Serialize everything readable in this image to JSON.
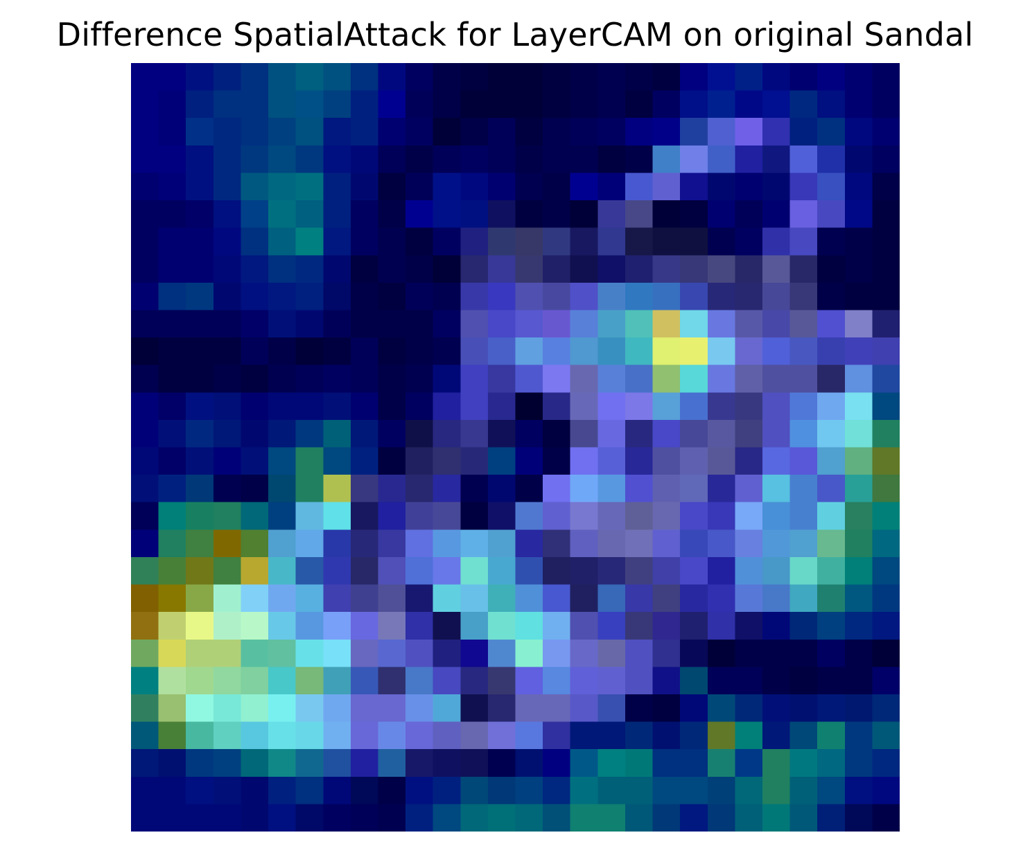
{
  "title": "Difference SpatialAttack for LayerCAM on original Sandal",
  "chart_data": {
    "type": "heatmap",
    "title": "Difference SpatialAttack for LayerCAM on original Sandal",
    "colormap": "gist_earth-like overlay (navy → blue → teal → green → yellow)",
    "rows": 28,
    "cols": 28,
    "grid": false,
    "axes_visible": false,
    "cells": [
      [
        "#000080",
        "#000080",
        "#001080",
        "#002080",
        "#003080",
        "#005080",
        "#006080",
        "#005080",
        "#003080",
        "#000880",
        "#000060",
        "#000048",
        "#000040",
        "#000038",
        "#000038",
        "#000040",
        "#000048",
        "#000050",
        "#000048",
        "#000040",
        "#000080",
        "#001090",
        "#002088",
        "#000880",
        "#000070",
        "#000080",
        "#000070",
        "#000060"
      ],
      [
        "#000080",
        "#000078",
        "#002080",
        "#003080",
        "#003080",
        "#005080",
        "#005088",
        "#004080",
        "#002080",
        "#000090",
        "#000058",
        "#000048",
        "#000038",
        "#000038",
        "#000038",
        "#000040",
        "#000048",
        "#000050",
        "#000040",
        "#000060",
        "#001088",
        "#002090",
        "#000888",
        "#001090",
        "#002880",
        "#001080",
        "#000070",
        "#000060"
      ],
      [
        "#000080",
        "#000078",
        "#003088",
        "#002880",
        "#003080",
        "#004080",
        "#005080",
        "#001880",
        "#002080",
        "#000070",
        "#000060",
        "#000038",
        "#000048",
        "#000058",
        "#000040",
        "#000050",
        "#000058",
        "#000060",
        "#000080",
        "#000088",
        "#2040a0",
        "#5060d0",
        "#7060e8",
        "#3030b0",
        "#002080",
        "#003080",
        "#000880",
        "#000070"
      ],
      [
        "#000080",
        "#000080",
        "#001080",
        "#002880",
        "#003880",
        "#004880",
        "#003880",
        "#001080",
        "#000878",
        "#000058",
        "#000048",
        "#000058",
        "#000060",
        "#000058",
        "#000048",
        "#000050",
        "#000050",
        "#000040",
        "#000048",
        "#4080c8",
        "#7080e8",
        "#4060c8",
        "#2020a0",
        "#101880",
        "#5060d8",
        "#2030a8",
        "#000870",
        "#000060"
      ],
      [
        "#000070",
        "#000078",
        "#001080",
        "#002880",
        "#005880",
        "#006880",
        "#007080",
        "#002080",
        "#000870",
        "#000040",
        "#000058",
        "#001088",
        "#000880",
        "#000070",
        "#000050",
        "#000048",
        "#000090",
        "#000078",
        "#4858d0",
        "#6060d0",
        "#101090",
        "#000870",
        "#000070",
        "#000870",
        "#3838b8",
        "#3850c0",
        "#000880",
        "#000048"
      ],
      [
        "#000060",
        "#000060",
        "#000068",
        "#001080",
        "#004088",
        "#007080",
        "#006080",
        "#002080",
        "#000060",
        "#000048",
        "#000090",
        "#001088",
        "#001080",
        "#101060",
        "#000040",
        "#000048",
        "#000038",
        "#383898",
        "#484888",
        "#000038",
        "#000040",
        "#000070",
        "#000058",
        "#000070",
        "#6860e0",
        "#4848c0",
        "#000888",
        "#000040"
      ],
      [
        "#000060",
        "#000070",
        "#000070",
        "#000880",
        "#003080",
        "#006080",
        "#008080",
        "#001880",
        "#000060",
        "#000050",
        "#000040",
        "#000060",
        "#202080",
        "#303870",
        "#383868",
        "#303880",
        "#181860",
        "#303890",
        "#181848",
        "#101040",
        "#101040",
        "#000050",
        "#000060",
        "#3030a8",
        "#4848c0",
        "#000050",
        "#000048",
        "#000040"
      ],
      [
        "#000060",
        "#000070",
        "#000070",
        "#000878",
        "#001880",
        "#003080",
        "#002880",
        "#000870",
        "#000040",
        "#000050",
        "#000048",
        "#000038",
        "#282870",
        "#383898",
        "#383870",
        "#202068",
        "#101050",
        "#101068",
        "#202070",
        "#383888",
        "#383878",
        "#484880",
        "#282868",
        "#585898",
        "#282868",
        "#000040",
        "#000048",
        "#000040"
      ],
      [
        "#000070",
        "#003080",
        "#003880",
        "#000870",
        "#001080",
        "#001880",
        "#002080",
        "#000868",
        "#000048",
        "#000040",
        "#000058",
        "#000050",
        "#3838a8",
        "#3838c0",
        "#5050b0",
        "#4848a0",
        "#5050c8",
        "#4880c8",
        "#3078c0",
        "#3870c0",
        "#3848b0",
        "#282878",
        "#282870",
        "#484898",
        "#383878",
        "#000048",
        "#000040",
        "#000040"
      ],
      [
        "#000058",
        "#000058",
        "#000058",
        "#000058",
        "#000068",
        "#001078",
        "#000870",
        "#000058",
        "#000048",
        "#000048",
        "#000048",
        "#000060",
        "#5050b0",
        "#4848c8",
        "#5858d0",
        "#6858d0",
        "#5880d8",
        "#48a0c8",
        "#50c0b8",
        "#d0c060",
        "#70d8e8",
        "#6878e0",
        "#5858a8",
        "#4848a8",
        "#585898",
        "#5050d0",
        "#8080c8",
        "#202070"
      ],
      [
        "#000038",
        "#000040",
        "#000040",
        "#000040",
        "#000058",
        "#000048",
        "#000038",
        "#000040",
        "#000058",
        "#000040",
        "#000048",
        "#000050",
        "#4850b8",
        "#4860c8",
        "#60a0e0",
        "#5880e0",
        "#5098d0",
        "#3890c0",
        "#40b8c0",
        "#e0f070",
        "#e8f070",
        "#78c8f0",
        "#6868d0",
        "#5060d8",
        "#4858c0",
        "#3840b0",
        "#4040b8",
        "#4040b0"
      ],
      [
        "#000050",
        "#000040",
        "#000040",
        "#000048",
        "#000040",
        "#000050",
        "#000058",
        "#000060",
        "#000058",
        "#000048",
        "#000050",
        "#000878",
        "#4040c0",
        "#3838a0",
        "#5058d0",
        "#7c78f0",
        "#6868b0",
        "#5880d8",
        "#4870c8",
        "#90c070",
        "#58d8d8",
        "#6878e0",
        "#6060a8",
        "#5050a0",
        "#5050a0",
        "#282868",
        "#6090e0",
        "#2048a0"
      ],
      [
        "#000078",
        "#000068",
        "#001080",
        "#001078",
        "#000070",
        "#000878",
        "#000878",
        "#001078",
        "#000070",
        "#000048",
        "#000060",
        "#2020a0",
        "#4040c0",
        "#282890",
        "#000030",
        "#282888",
        "#6868b8",
        "#7070f0",
        "#7c78e8",
        "#58a0d8",
        "#4870d0",
        "#383890",
        "#383880",
        "#5050c0",
        "#5078d8",
        "#70a8f0",
        "#78e0f0",
        "#004880"
      ],
      [
        "#000078",
        "#001078",
        "#002880",
        "#001878",
        "#000870",
        "#001878",
        "#003880",
        "#006078",
        "#001878",
        "#000060",
        "#101048",
        "#282880",
        "#383890",
        "#101058",
        "#000060",
        "#000040",
        "#484890",
        "#6868e0",
        "#282880",
        "#4848c8",
        "#484898",
        "#5858a0",
        "#404080",
        "#5050c0",
        "#5090e0",
        "#70c8f0",
        "#70e0d8",
        "#208060"
      ],
      [
        "#000878",
        "#000068",
        "#001078",
        "#000078",
        "#001078",
        "#004880",
        "#208060",
        "#004880",
        "#002080",
        "#000040",
        "#202060",
        "#303070",
        "#282878",
        "#004080",
        "#000078",
        "#000048",
        "#7070f0",
        "#5860d8",
        "#282898",
        "#5050a0",
        "#6060b0",
        "#585898",
        "#282888",
        "#5868e0",
        "#5858d8",
        "#50a0d0",
        "#60b080",
        "#607828"
      ],
      [
        "#001078",
        "#002080",
        "#003878",
        "#000050",
        "#000048",
        "#004870",
        "#208060",
        "#b0c050",
        "#383880",
        "#282890",
        "#282870",
        "#2828a0",
        "#000050",
        "#000870",
        "#000048",
        "#7070f0",
        "#70a8f8",
        "#5898e0",
        "#5050d0",
        "#6060b0",
        "#6068b8",
        "#282898",
        "#6060d0",
        "#58c0e0",
        "#4880d0",
        "#4858c8",
        "#28a098",
        "#407840"
      ],
      [
        "#000058",
        "#008078",
        "#188060",
        "#208060",
        "#006878",
        "#004080",
        "#60b8e0",
        "#60e0e8",
        "#181860",
        "#2020a0",
        "#404098",
        "#484898",
        "#000040",
        "#101068",
        "#5078d0",
        "#6060d0",
        "#7878d0",
        "#6868b8",
        "#606098",
        "#6868b0",
        "#4848c8",
        "#3838b8",
        "#78a8f8",
        "#4890d8",
        "#4880d0",
        "#60d0e0",
        "#288060",
        "#008078"
      ],
      [
        "#000078",
        "#208060",
        "#408040",
        "#806800",
        "#508030",
        "#50a0d0",
        "#60a8e8",
        "#2838a8",
        "#282878",
        "#3838a0",
        "#6070e0",
        "#5898e0",
        "#60b0e8",
        "#50a0d0",
        "#2828a0",
        "#303078",
        "#6060c0",
        "#6868b0",
        "#7070b8",
        "#6060d0",
        "#3848b8",
        "#4858c8",
        "#6880e0",
        "#5098d8",
        "#50a0d0",
        "#68b890",
        "#208060",
        "#006880"
      ],
      [
        "#308058",
        "#488038",
        "#707818",
        "#408040",
        "#b8a830",
        "#48b8c8",
        "#2858a8",
        "#3038b0",
        "#282868",
        "#5050b8",
        "#5070d8",
        "#6878e8",
        "#70e0d0",
        "#48a8d0",
        "#3050b0",
        "#202060",
        "#202068",
        "#282878",
        "#404080",
        "#4040a8",
        "#4848c8",
        "#2020a0",
        "#5090d8",
        "#4898c8",
        "#68d8c8",
        "#40b0a0",
        "#008078",
        "#004880"
      ],
      [
        "#806000",
        "#887800",
        "#88a848",
        "#a0f0d0",
        "#80d0f8",
        "#70a8f0",
        "#58b0e0",
        "#4040b0",
        "#404090",
        "#505098",
        "#181870",
        "#60d0e0",
        "#68c0e8",
        "#40b0b8",
        "#5090d8",
        "#4858d0",
        "#202060",
        "#3868b8",
        "#3838a8",
        "#404080",
        "#2828a0",
        "#3030b0",
        "#5878d8",
        "#4878c8",
        "#40a8c0",
        "#208070",
        "#005880",
        "#003880"
      ],
      [
        "#907010",
        "#c0d070",
        "#e8f888",
        "#b0f0c8",
        "#b8f8c8",
        "#68c8e8",
        "#5898e0",
        "#78a0f8",
        "#6868e0",
        "#7878b8",
        "#3030a8",
        "#101050",
        "#48a0c8",
        "#70e0d0",
        "#60e0e0",
        "#70b0f0",
        "#5050b0",
        "#3840c0",
        "#383878",
        "#302890",
        "#202070",
        "#3030a8",
        "#101068",
        "#000878",
        "#002878",
        "#004080",
        "#002880",
        "#001880"
      ],
      [
        "#70a860",
        "#d8d858",
        "#b0d078",
        "#b0d078",
        "#58c0a0",
        "#60c0a0",
        "#68e0e8",
        "#78e0f8",
        "#6868c0",
        "#5868d0",
        "#5050c0",
        "#202080",
        "#100890",
        "#5088d0",
        "#88f0d0",
        "#7898f0",
        "#6868c8",
        "#6868a8",
        "#5050c0",
        "#303090",
        "#080858",
        "#000038",
        "#000048",
        "#000048",
        "#000048",
        "#000060",
        "#000048",
        "#000038"
      ],
      [
        "#008080",
        "#b0e0a0",
        "#a0d890",
        "#90d8a0",
        "#80d0a0",
        "#48c8c8",
        "#78b878",
        "#40a0b8",
        "#3858b8",
        "#303070",
        "#4878c8",
        "#4848c0",
        "#282880",
        "#383870",
        "#6060e0",
        "#5888e0",
        "#6060d8",
        "#6060d0",
        "#5050c0",
        "#101088",
        "#004870",
        "#000058",
        "#000058",
        "#000048",
        "#000040",
        "#000048",
        "#000048",
        "#000068"
      ],
      [
        "#308060",
        "#98c070",
        "#90f8e0",
        "#78e8d8",
        "#90f0d0",
        "#78f0f0",
        "#78c8f0",
        "#70a8f0",
        "#6868d0",
        "#6868d0",
        "#6890e8",
        "#50a8d8",
        "#101050",
        "#282870",
        "#6868b8",
        "#6868b8",
        "#5858c8",
        "#3850b0",
        "#000048",
        "#000040",
        "#000878",
        "#004878",
        "#002878",
        "#001078",
        "#001070",
        "#001878",
        "#001870",
        "#002878"
      ],
      [
        "#005878",
        "#488038",
        "#48b8a0",
        "#60d0c0",
        "#58c8e0",
        "#68e0e8",
        "#68d8e8",
        "#70b0f0",
        "#6868d8",
        "#6888e8",
        "#6868d8",
        "#6060c0",
        "#6868b0",
        "#7070d8",
        "#5878e0",
        "#3030a0",
        "#001878",
        "#001878",
        "#002878",
        "#001070",
        "#002878",
        "#607828",
        "#008078",
        "#001878",
        "#004878",
        "#108070",
        "#003880",
        "#005878"
      ],
      [
        "#001878",
        "#001070",
        "#003880",
        "#004080",
        "#006878",
        "#108888",
        "#106890",
        "#2050a0",
        "#2020a0",
        "#2060a0",
        "#181868",
        "#101060",
        "#101058",
        "#000050",
        "#001070",
        "#000080",
        "#005888",
        "#008080",
        "#007878",
        "#003080",
        "#003080",
        "#188070",
        "#003888",
        "#208060",
        "#007880",
        "#006880",
        "#003880",
        "#002880"
      ],
      [
        "#000878",
        "#000878",
        "#001080",
        "#001078",
        "#000870",
        "#002080",
        "#003080",
        "#000878",
        "#000858",
        "#000048",
        "#001080",
        "#002080",
        "#004878",
        "#003878",
        "#004080",
        "#002880",
        "#007080",
        "#006078",
        "#006078",
        "#004880",
        "#004880",
        "#004078",
        "#006878",
        "#208060",
        "#006078",
        "#004880",
        "#001080",
        "#000880"
      ],
      [
        "#000878",
        "#000878",
        "#000878",
        "#000878",
        "#000870",
        "#001080",
        "#000868",
        "#000060",
        "#000058",
        "#000050",
        "#002080",
        "#004880",
        "#006878",
        "#007078",
        "#006878",
        "#005078",
        "#108070",
        "#108070",
        "#005878",
        "#003878",
        "#001880",
        "#003878",
        "#006078",
        "#007878",
        "#005878",
        "#002078",
        "#000858",
        "#000048"
      ]
    ]
  }
}
